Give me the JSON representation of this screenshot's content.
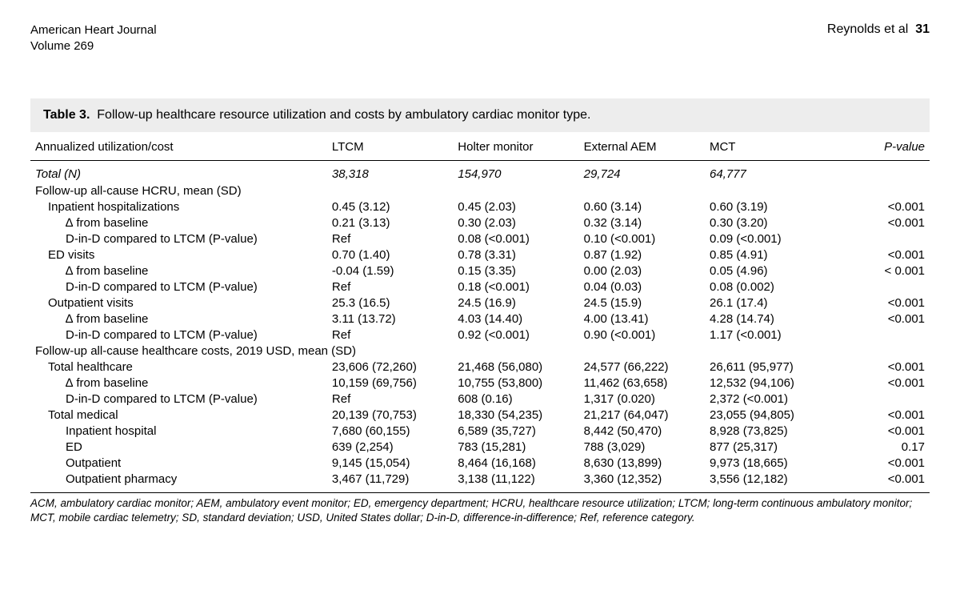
{
  "header": {
    "journal": "American Heart Journal",
    "volume": "Volume 269",
    "authors": "Reynolds et al",
    "page": "31"
  },
  "caption": {
    "label": "Table 3.",
    "text": "Follow-up healthcare resource utilization and costs by ambulatory cardiac monitor type."
  },
  "columns": {
    "rowhead": "Annualized utilization/cost",
    "c1": "LTCM",
    "c2": "Holter monitor",
    "c3": "External AEM",
    "c4": "MCT",
    "c5": "P-value"
  },
  "totaln": {
    "label": "Total (N)",
    "v1": "38,318",
    "v2": "154,970",
    "v3": "29,724",
    "v4": "64,777"
  },
  "sec1": {
    "label": "Follow-up all-cause HCRU, mean (SD)"
  },
  "r_inpt": {
    "label": "Inpatient hospitalizations",
    "v1": "0.45 (3.12)",
    "v2": "0.45 (2.03)",
    "v3": "0.60 (3.14)",
    "v4": "0.60 (3.19)",
    "p": "<0.001"
  },
  "r_inpt_d": {
    "label": "∆ from baseline",
    "v1": "0.21 (3.13)",
    "v2": "0.30 (2.03)",
    "v3": "0.32 (3.14)",
    "v4": "0.30 (3.20)",
    "p": "<0.001"
  },
  "r_inpt_dd": {
    "label": "D-in-D compared to LTCM (P-value)",
    "v1": "Ref",
    "v2": "0.08 (<0.001)",
    "v3": "0.10 (<0.001)",
    "v4": "0.09 (<0.001)",
    "p": ""
  },
  "r_ed": {
    "label": "ED visits",
    "v1": "0.70 (1.40)",
    "v2": "0.78 (3.31)",
    "v3": "0.87 (1.92)",
    "v4": "0.85 (4.91)",
    "p": "<0.001"
  },
  "r_ed_d": {
    "label": "∆ from baseline",
    "v1": "-0.04 (1.59)",
    "v2": "0.15 (3.35)",
    "v3": "0.00 (2.03)",
    "v4": "0.05 (4.96)",
    "p": "< 0.001"
  },
  "r_ed_dd": {
    "label": "D-in-D compared to LTCM (P-value)",
    "v1": "Ref",
    "v2": "0.18 (<0.001)",
    "v3": "0.04 (0.03)",
    "v4": "0.08 (0.002)",
    "p": ""
  },
  "r_out": {
    "label": "Outpatient visits",
    "v1": "25.3 (16.5)",
    "v2": "24.5 (16.9)",
    "v3": "24.5 (15.9)",
    "v4": "26.1 (17.4)",
    "p": "<0.001"
  },
  "r_out_d": {
    "label": "∆ from baseline",
    "v1": "3.11 (13.72)",
    "v2": "4.03 (14.40)",
    "v3": "4.00 (13.41)",
    "v4": "4.28 (14.74)",
    "p": "<0.001"
  },
  "r_out_dd": {
    "label": "D-in-D compared to LTCM (P-value)",
    "v1": "Ref",
    "v2": "0.92 (<0.001)",
    "v3": "0.90 (<0.001)",
    "v4": "1.17 (<0.001)",
    "p": ""
  },
  "sec2": {
    "label": "Follow-up all-cause healthcare costs, 2019 USD, mean (SD)"
  },
  "r_th": {
    "label": "Total healthcare",
    "v1": "23,606 (72,260)",
    "v2": "21,468 (56,080)",
    "v3": "24,577 (66,222)",
    "v4": "26,611 (95,977)",
    "p": "<0.001"
  },
  "r_th_d": {
    "label": "∆ from baseline",
    "v1": "10,159 (69,756)",
    "v2": "10,755 (53,800)",
    "v3": "11,462 (63,658)",
    "v4": "12,532 (94,106)",
    "p": "<0.001"
  },
  "r_th_dd": {
    "label": "D-in-D compared to LTCM (P-value)",
    "v1": "Ref",
    "v2": "608 (0.16)",
    "v3": "1,317 (0.020)",
    "v4": "2,372 (<0.001)",
    "p": ""
  },
  "r_tm": {
    "label": "Total medical",
    "v1": "20,139 (70,753)",
    "v2": "18,330 (54,235)",
    "v3": "21,217 (64,047)",
    "v4": "23,055 (94,805)",
    "p": "<0.001"
  },
  "r_ih": {
    "label": "Inpatient hospital",
    "v1": "7,680 (60,155)",
    "v2": "6,589 (35,727)",
    "v3": "8,442 (50,470)",
    "v4": "8,928 (73,825)",
    "p": "<0.001"
  },
  "r_edc": {
    "label": "ED",
    "v1": "639 (2,254)",
    "v2": "783 (15,281)",
    "v3": "788 (3,029)",
    "v4": "877 (25,317)",
    "p": "0.17"
  },
  "r_op": {
    "label": "Outpatient",
    "v1": "9,145 (15,054)",
    "v2": "8,464 (16,168)",
    "v3": "8,630 (13,899)",
    "v4": "9,973 (18,665)",
    "p": "<0.001"
  },
  "r_opx": {
    "label": "Outpatient pharmacy",
    "v1": "3,467 (11,729)",
    "v2": "3,138 (11,122)",
    "v3": "3,360 (12,352)",
    "v4": "3,556 (12,182)",
    "p": "<0.001"
  },
  "footnote": "ACM, ambulatory cardiac monitor; AEM, ambulatory event monitor; ED, emergency department; HCRU, healthcare resource utilization; LTCM; long-term continuous ambulatory monitor; MCT, mobile cardiac telemetry; SD, standard deviation; USD, United States dollar; D-in-D, difference-in-difference; Ref, reference category."
}
